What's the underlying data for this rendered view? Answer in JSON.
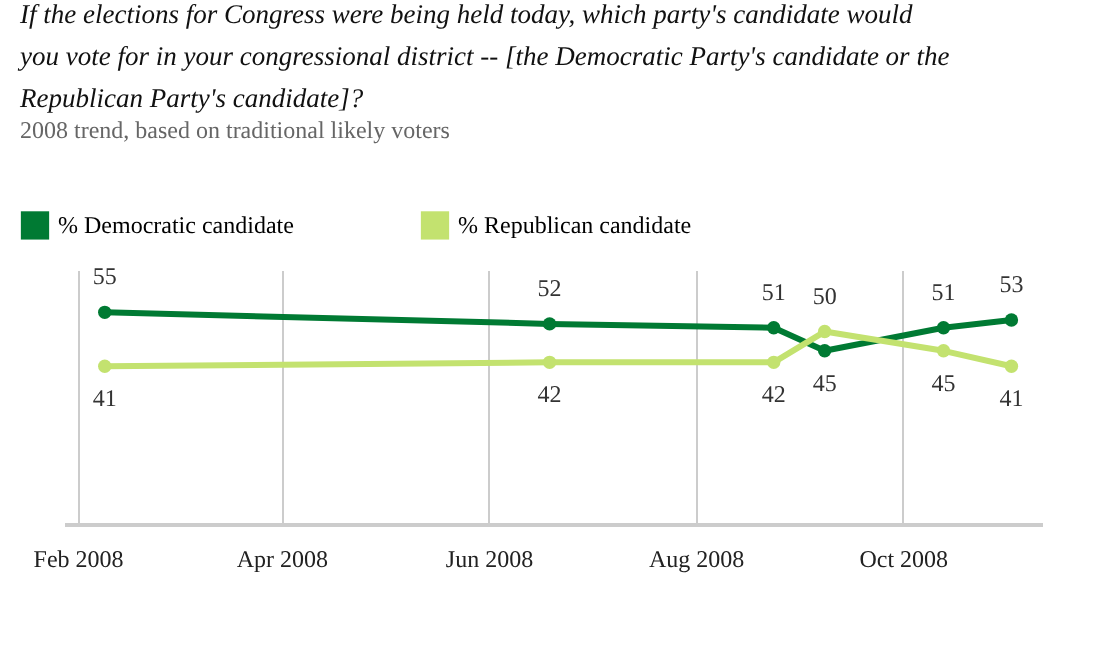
{
  "chart_data": {
    "type": "line",
    "title": [
      "If the elections for Congress were being held today, which party's candidate would",
      "you vote for in your congressional district -- [the Democratic Party's candidate or the",
      "Republican Party's candidate]?"
    ],
    "subtitle": "2008 trend, based on traditional likely voters",
    "x": [
      "2008-02-09",
      "2008-06-19",
      "2008-08-24",
      "2008-09-08",
      "2008-10-13",
      "2008-11-02"
    ],
    "series": [
      {
        "name": "% Democratic  candidate",
        "color": "#007a33",
        "values": [
          55,
          52,
          51,
          45,
          51,
          53
        ]
      },
      {
        "name": "% Republican candidate",
        "color": "#c3e26f",
        "values": [
          41,
          42,
          42,
          50,
          45,
          41
        ]
      }
    ],
    "xlim": [
      "2008-01-28",
      "2008-11-11"
    ],
    "xticks": [
      {
        "value": "2008-02-01",
        "label": "Feb 2008"
      },
      {
        "value": "2008-04-01",
        "label": "Apr 2008"
      },
      {
        "value": "2008-06-01",
        "label": "Jun 2008"
      },
      {
        "value": "2008-08-01",
        "label": "Aug 2008"
      },
      {
        "value": "2008-10-01",
        "label": "Oct 2008"
      }
    ],
    "ylim": [
      0,
      66
    ],
    "tick_labels": "x",
    "grid": "x",
    "legend": "top left",
    "marker": "circle",
    "line_style": "solid",
    "data_labels": true
  }
}
